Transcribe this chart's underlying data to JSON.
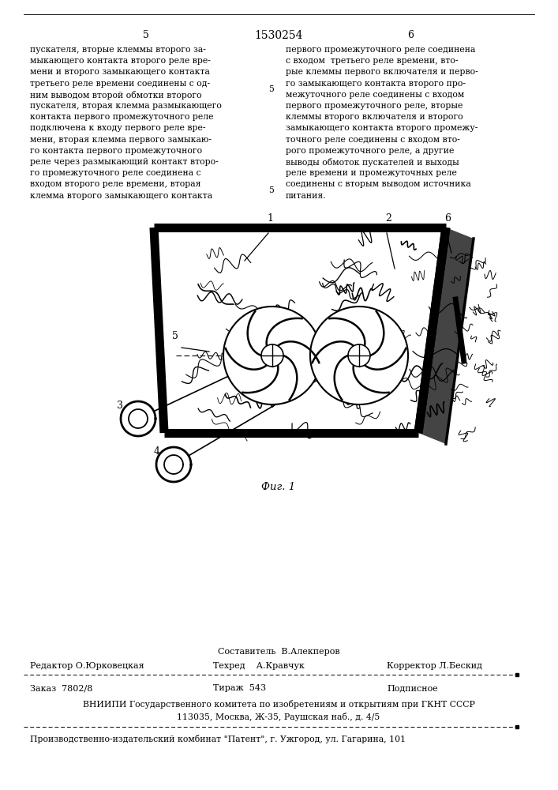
{
  "page_number_left": "5",
  "page_number_center": "1530254",
  "page_number_right": "6",
  "fig_caption": "Фиг. 1",
  "footer_costitutel": "Составитель  В.Алекперов",
  "footer_editor": "Редактор О.Юрковецкая",
  "footer_techred": "Техред    А.Кравчук",
  "footer_korrektor": "Корректор Л.Бескид",
  "footer_zakaz": "Заказ  7802/8",
  "footer_tirazh": "Тираж  543",
  "footer_podpisnoe": "Подписное",
  "footer_vniip": "ВНИИПИ Государственного комитета по изобретениям и открытиям при ГКНТ СССР",
  "footer_address": "113035, Москва, Ж-35, Раушская наб., д. 4/5",
  "footer_patent": "Производственно-издательский комбинат \"Патент\", г. Ужгород, ул. Гагарина, 101",
  "bg_color": "#ffffff",
  "text_color": "#000000"
}
